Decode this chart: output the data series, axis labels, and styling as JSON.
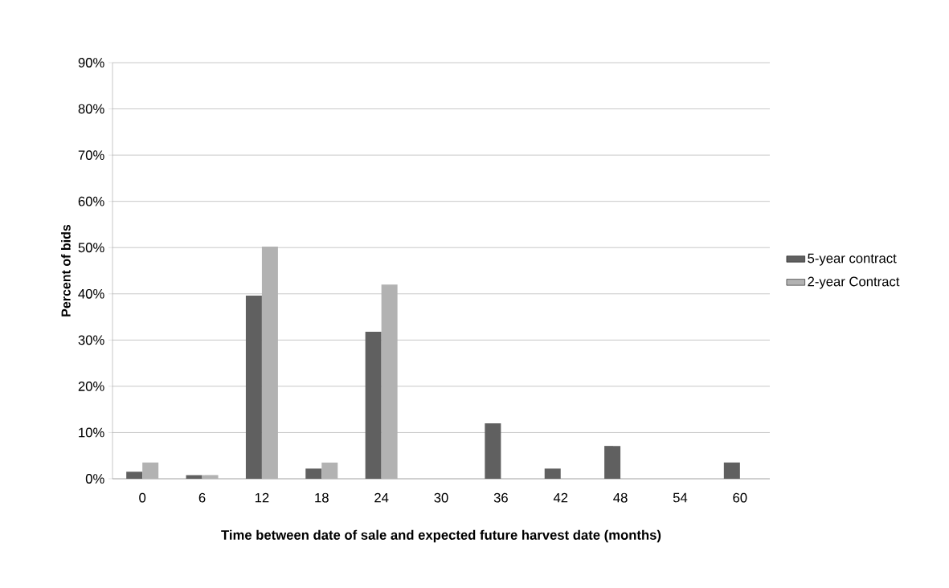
{
  "chart_data": {
    "type": "bar",
    "xlabel": "Time between date of sale and expected future harvest date (months)",
    "ylabel": "Percent of bids",
    "categories": [
      "0",
      "6",
      "12",
      "18",
      "24",
      "30",
      "36",
      "42",
      "48",
      "54",
      "60"
    ],
    "series": [
      {
        "name": "5-year contract",
        "color": "#606060",
        "values": [
          1.5,
          0.8,
          39.6,
          2.2,
          31.8,
          0,
          12.0,
          2.2,
          7.1,
          0,
          3.5
        ]
      },
      {
        "name": "2-year Contract",
        "color": "#b2b2b2",
        "values": [
          3.5,
          0.8,
          50.2,
          3.5,
          42.0,
          0,
          0,
          0,
          0,
          0,
          0
        ]
      }
    ],
    "ylim": [
      0,
      90
    ],
    "yticks": [
      {
        "value": 0,
        "label": "0%"
      },
      {
        "value": 10,
        "label": "10%"
      },
      {
        "value": 20,
        "label": "20%"
      },
      {
        "value": 30,
        "label": "30%"
      },
      {
        "value": 40,
        "label": "40%"
      },
      {
        "value": 50,
        "label": "50%"
      },
      {
        "value": 60,
        "label": "60%"
      },
      {
        "value": 70,
        "label": "70%"
      },
      {
        "value": 80,
        "label": "80%"
      },
      {
        "value": 90,
        "label": "90%"
      }
    ],
    "grid": "y",
    "legend": "right"
  }
}
